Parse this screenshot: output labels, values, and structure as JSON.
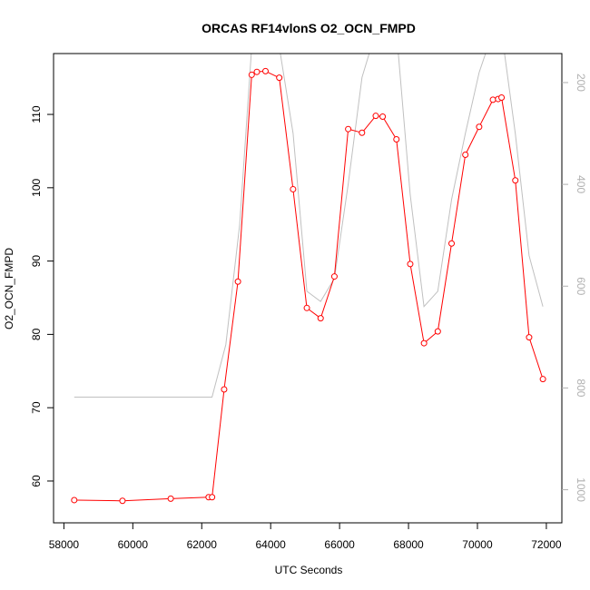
{
  "chart_data": {
    "type": "line",
    "title": "ORCAS RF14vlonS O2_OCN_FMPD",
    "xlabel": "UTC Seconds",
    "ylabel": "O2_OCN_FMPD",
    "xlim": [
      57700,
      72450
    ],
    "ylim": [
      54.3,
      118.3
    ],
    "y2lim": [
      1065,
      143
    ],
    "x_ticks": [
      58000,
      60000,
      62000,
      64000,
      66000,
      68000,
      70000,
      72000
    ],
    "y_ticks": [
      60,
      70,
      80,
      90,
      100,
      110
    ],
    "y2_ticks": [
      200,
      400,
      600,
      800,
      1000
    ],
    "colors": {
      "primary": "#ff0000",
      "secondary": "#c0c0c0",
      "axis": "#000000",
      "secondary_axis": "#b0b0b0"
    },
    "series": [
      {
        "color": "#ff0000",
        "marker": "open-circle",
        "x": [
          58300,
          59700,
          61100,
          62200,
          62300,
          62650,
          63050,
          63450,
          63600,
          63850,
          64250,
          64650,
          65050,
          65450,
          65850,
          66250,
          66650,
          67050,
          67250,
          67650,
          68050,
          68450,
          68850,
          69250,
          69650,
          70050,
          70450,
          70600,
          70700,
          71100,
          71500,
          71900
        ],
        "y": [
          57.4,
          57.3,
          57.6,
          57.8,
          57.8,
          72.5,
          87.2,
          115.4,
          115.8,
          115.9,
          115.0,
          99.8,
          83.6,
          82.2,
          87.9,
          108.0,
          107.5,
          109.8,
          109.7,
          106.6,
          89.6,
          78.8,
          80.4,
          92.4,
          104.5,
          108.3,
          112.0,
          112.1,
          112.3,
          101.0,
          79.6,
          73.9
        ]
      },
      {
        "color": "#c0c0c0",
        "axis": "right",
        "x": [
          58300,
          62300,
          62700,
          63100,
          63450,
          64250,
          64650,
          65050,
          65450,
          65850,
          66250,
          66650,
          67050,
          67650,
          68050,
          68450,
          68850,
          69250,
          69650,
          70050,
          70450,
          70700,
          71100,
          71500,
          71900
        ],
        "y": [
          818,
          818,
          715,
          480,
          130,
          130,
          300,
          610,
          630,
          585,
          400,
          190,
          100,
          100,
          420,
          640,
          610,
          430,
          300,
          180,
          100,
          100,
          300,
          540,
          640
        ]
      }
    ]
  }
}
